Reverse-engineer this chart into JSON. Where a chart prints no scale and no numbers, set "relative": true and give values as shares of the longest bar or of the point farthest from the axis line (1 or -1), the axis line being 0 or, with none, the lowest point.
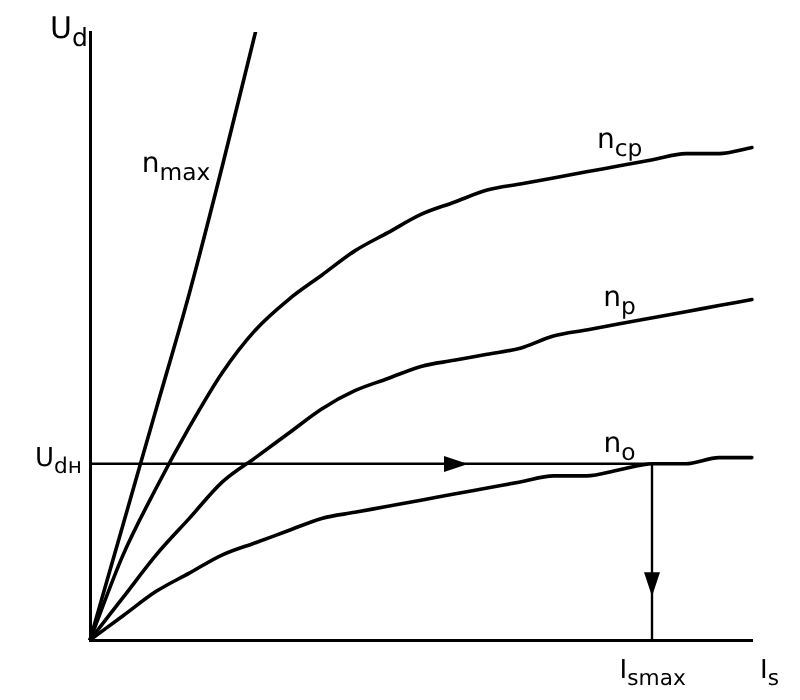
{
  "chart_data": {
    "type": "line",
    "relative": true,
    "xlabel": "I$_{s}$",
    "ylabel": "U$_{d}$",
    "categories": [
      null,
      null,
      null,
      null,
      null,
      null,
      null,
      null,
      null,
      null,
      null,
      null,
      null,
      null,
      null,
      null,
      null,
      null,
      null,
      null,
      null
    ],
    "series": [
      {
        "name": "n$_{max}$",
        "color": "#000000",
        "values": [
          0,
          0.19,
          0.38,
          0.57,
          0.78,
          1.0,
          null,
          null,
          null,
          null,
          null,
          null,
          null,
          null,
          null,
          null,
          null,
          null,
          null,
          null,
          null
        ]
      },
      {
        "name": "n$_{cp}$",
        "color": "#000000",
        "values": [
          0,
          0.14,
          0.25,
          0.35,
          0.44,
          0.51,
          0.56,
          0.6,
          0.64,
          0.67,
          0.7,
          0.72,
          0.74,
          0.75,
          0.76,
          0.77,
          0.78,
          0.79,
          0.8,
          0.8,
          0.81
        ]
      },
      {
        "name": "n$_{p}$",
        "color": "#000000",
        "values": [
          0,
          0.07,
          0.14,
          0.2,
          0.26,
          0.3,
          0.34,
          0.38,
          0.41,
          0.43,
          0.45,
          0.46,
          0.47,
          0.48,
          0.5,
          0.51,
          0.52,
          0.53,
          0.54,
          0.55,
          0.56
        ]
      },
      {
        "name": "n$_{o}$",
        "color": "#000000",
        "values": [
          0,
          0.04,
          0.08,
          0.11,
          0.14,
          0.16,
          0.18,
          0.2,
          0.21,
          0.22,
          0.23,
          0.24,
          0.25,
          0.26,
          0.27,
          0.27,
          0.28,
          0.29,
          0.29,
          0.3,
          0.3
        ]
      }
    ],
    "ref_lines": [
      {
        "axis": "y",
        "value": 0.29,
        "label": "U$_{dн}$",
        "color": "#000000"
      }
    ],
    "annotations": [
      "I$_{smax}$"
    ],
    "grid": false,
    "legend": false,
    "marker": "none",
    "line_style": "solid"
  }
}
